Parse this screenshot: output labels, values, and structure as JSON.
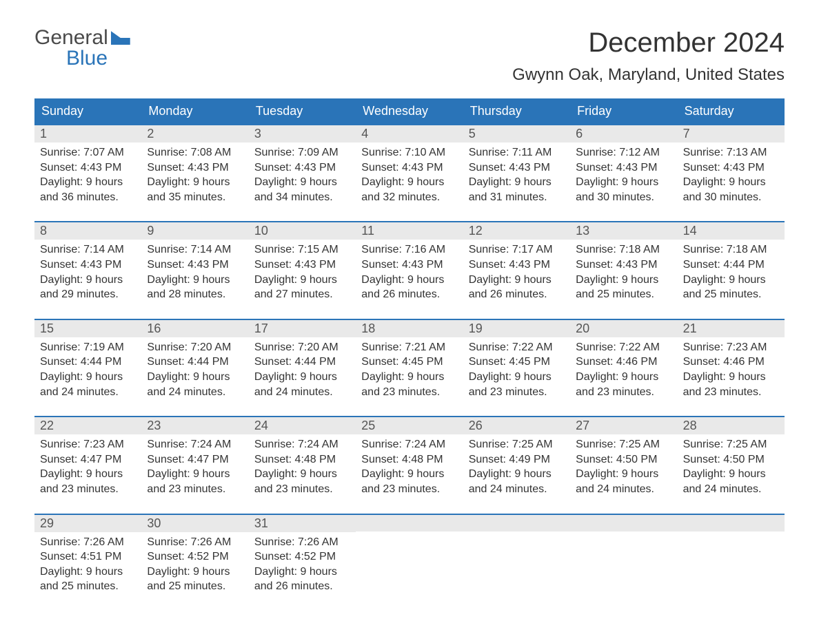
{
  "logo": {
    "line1": "General",
    "line2": "Blue"
  },
  "title": "December 2024",
  "location": "Gwynn Oak, Maryland, United States",
  "colors": {
    "header_bg": "#2a74b8",
    "header_text": "#ffffff",
    "daynum_bg": "#e9e9e9",
    "text": "#333333",
    "week_border": "#2a74b8"
  },
  "typography": {
    "title_fontsize": 40,
    "location_fontsize": 24,
    "header_fontsize": 18,
    "daynum_fontsize": 18,
    "details_fontsize": 16
  },
  "layout": {
    "columns": 7,
    "rows": 5
  },
  "day_names": [
    "Sunday",
    "Monday",
    "Tuesday",
    "Wednesday",
    "Thursday",
    "Friday",
    "Saturday"
  ],
  "weeks": [
    [
      {
        "n": "1",
        "sunrise": "Sunrise: 7:07 AM",
        "sunset": "Sunset: 4:43 PM",
        "d1": "Daylight: 9 hours",
        "d2": "and 36 minutes."
      },
      {
        "n": "2",
        "sunrise": "Sunrise: 7:08 AM",
        "sunset": "Sunset: 4:43 PM",
        "d1": "Daylight: 9 hours",
        "d2": "and 35 minutes."
      },
      {
        "n": "3",
        "sunrise": "Sunrise: 7:09 AM",
        "sunset": "Sunset: 4:43 PM",
        "d1": "Daylight: 9 hours",
        "d2": "and 34 minutes."
      },
      {
        "n": "4",
        "sunrise": "Sunrise: 7:10 AM",
        "sunset": "Sunset: 4:43 PM",
        "d1": "Daylight: 9 hours",
        "d2": "and 32 minutes."
      },
      {
        "n": "5",
        "sunrise": "Sunrise: 7:11 AM",
        "sunset": "Sunset: 4:43 PM",
        "d1": "Daylight: 9 hours",
        "d2": "and 31 minutes."
      },
      {
        "n": "6",
        "sunrise": "Sunrise: 7:12 AM",
        "sunset": "Sunset: 4:43 PM",
        "d1": "Daylight: 9 hours",
        "d2": "and 30 minutes."
      },
      {
        "n": "7",
        "sunrise": "Sunrise: 7:13 AM",
        "sunset": "Sunset: 4:43 PM",
        "d1": "Daylight: 9 hours",
        "d2": "and 30 minutes."
      }
    ],
    [
      {
        "n": "8",
        "sunrise": "Sunrise: 7:14 AM",
        "sunset": "Sunset: 4:43 PM",
        "d1": "Daylight: 9 hours",
        "d2": "and 29 minutes."
      },
      {
        "n": "9",
        "sunrise": "Sunrise: 7:14 AM",
        "sunset": "Sunset: 4:43 PM",
        "d1": "Daylight: 9 hours",
        "d2": "and 28 minutes."
      },
      {
        "n": "10",
        "sunrise": "Sunrise: 7:15 AM",
        "sunset": "Sunset: 4:43 PM",
        "d1": "Daylight: 9 hours",
        "d2": "and 27 minutes."
      },
      {
        "n": "11",
        "sunrise": "Sunrise: 7:16 AM",
        "sunset": "Sunset: 4:43 PM",
        "d1": "Daylight: 9 hours",
        "d2": "and 26 minutes."
      },
      {
        "n": "12",
        "sunrise": "Sunrise: 7:17 AM",
        "sunset": "Sunset: 4:43 PM",
        "d1": "Daylight: 9 hours",
        "d2": "and 26 minutes."
      },
      {
        "n": "13",
        "sunrise": "Sunrise: 7:18 AM",
        "sunset": "Sunset: 4:43 PM",
        "d1": "Daylight: 9 hours",
        "d2": "and 25 minutes."
      },
      {
        "n": "14",
        "sunrise": "Sunrise: 7:18 AM",
        "sunset": "Sunset: 4:44 PM",
        "d1": "Daylight: 9 hours",
        "d2": "and 25 minutes."
      }
    ],
    [
      {
        "n": "15",
        "sunrise": "Sunrise: 7:19 AM",
        "sunset": "Sunset: 4:44 PM",
        "d1": "Daylight: 9 hours",
        "d2": "and 24 minutes."
      },
      {
        "n": "16",
        "sunrise": "Sunrise: 7:20 AM",
        "sunset": "Sunset: 4:44 PM",
        "d1": "Daylight: 9 hours",
        "d2": "and 24 minutes."
      },
      {
        "n": "17",
        "sunrise": "Sunrise: 7:20 AM",
        "sunset": "Sunset: 4:44 PM",
        "d1": "Daylight: 9 hours",
        "d2": "and 24 minutes."
      },
      {
        "n": "18",
        "sunrise": "Sunrise: 7:21 AM",
        "sunset": "Sunset: 4:45 PM",
        "d1": "Daylight: 9 hours",
        "d2": "and 23 minutes."
      },
      {
        "n": "19",
        "sunrise": "Sunrise: 7:22 AM",
        "sunset": "Sunset: 4:45 PM",
        "d1": "Daylight: 9 hours",
        "d2": "and 23 minutes."
      },
      {
        "n": "20",
        "sunrise": "Sunrise: 7:22 AM",
        "sunset": "Sunset: 4:46 PM",
        "d1": "Daylight: 9 hours",
        "d2": "and 23 minutes."
      },
      {
        "n": "21",
        "sunrise": "Sunrise: 7:23 AM",
        "sunset": "Sunset: 4:46 PM",
        "d1": "Daylight: 9 hours",
        "d2": "and 23 minutes."
      }
    ],
    [
      {
        "n": "22",
        "sunrise": "Sunrise: 7:23 AM",
        "sunset": "Sunset: 4:47 PM",
        "d1": "Daylight: 9 hours",
        "d2": "and 23 minutes."
      },
      {
        "n": "23",
        "sunrise": "Sunrise: 7:24 AM",
        "sunset": "Sunset: 4:47 PM",
        "d1": "Daylight: 9 hours",
        "d2": "and 23 minutes."
      },
      {
        "n": "24",
        "sunrise": "Sunrise: 7:24 AM",
        "sunset": "Sunset: 4:48 PM",
        "d1": "Daylight: 9 hours",
        "d2": "and 23 minutes."
      },
      {
        "n": "25",
        "sunrise": "Sunrise: 7:24 AM",
        "sunset": "Sunset: 4:48 PM",
        "d1": "Daylight: 9 hours",
        "d2": "and 23 minutes."
      },
      {
        "n": "26",
        "sunrise": "Sunrise: 7:25 AM",
        "sunset": "Sunset: 4:49 PM",
        "d1": "Daylight: 9 hours",
        "d2": "and 24 minutes."
      },
      {
        "n": "27",
        "sunrise": "Sunrise: 7:25 AM",
        "sunset": "Sunset: 4:50 PM",
        "d1": "Daylight: 9 hours",
        "d2": "and 24 minutes."
      },
      {
        "n": "28",
        "sunrise": "Sunrise: 7:25 AM",
        "sunset": "Sunset: 4:50 PM",
        "d1": "Daylight: 9 hours",
        "d2": "and 24 minutes."
      }
    ],
    [
      {
        "n": "29",
        "sunrise": "Sunrise: 7:26 AM",
        "sunset": "Sunset: 4:51 PM",
        "d1": "Daylight: 9 hours",
        "d2": "and 25 minutes."
      },
      {
        "n": "30",
        "sunrise": "Sunrise: 7:26 AM",
        "sunset": "Sunset: 4:52 PM",
        "d1": "Daylight: 9 hours",
        "d2": "and 25 minutes."
      },
      {
        "n": "31",
        "sunrise": "Sunrise: 7:26 AM",
        "sunset": "Sunset: 4:52 PM",
        "d1": "Daylight: 9 hours",
        "d2": "and 26 minutes."
      },
      {
        "empty": true
      },
      {
        "empty": true
      },
      {
        "empty": true
      },
      {
        "empty": true
      }
    ]
  ]
}
